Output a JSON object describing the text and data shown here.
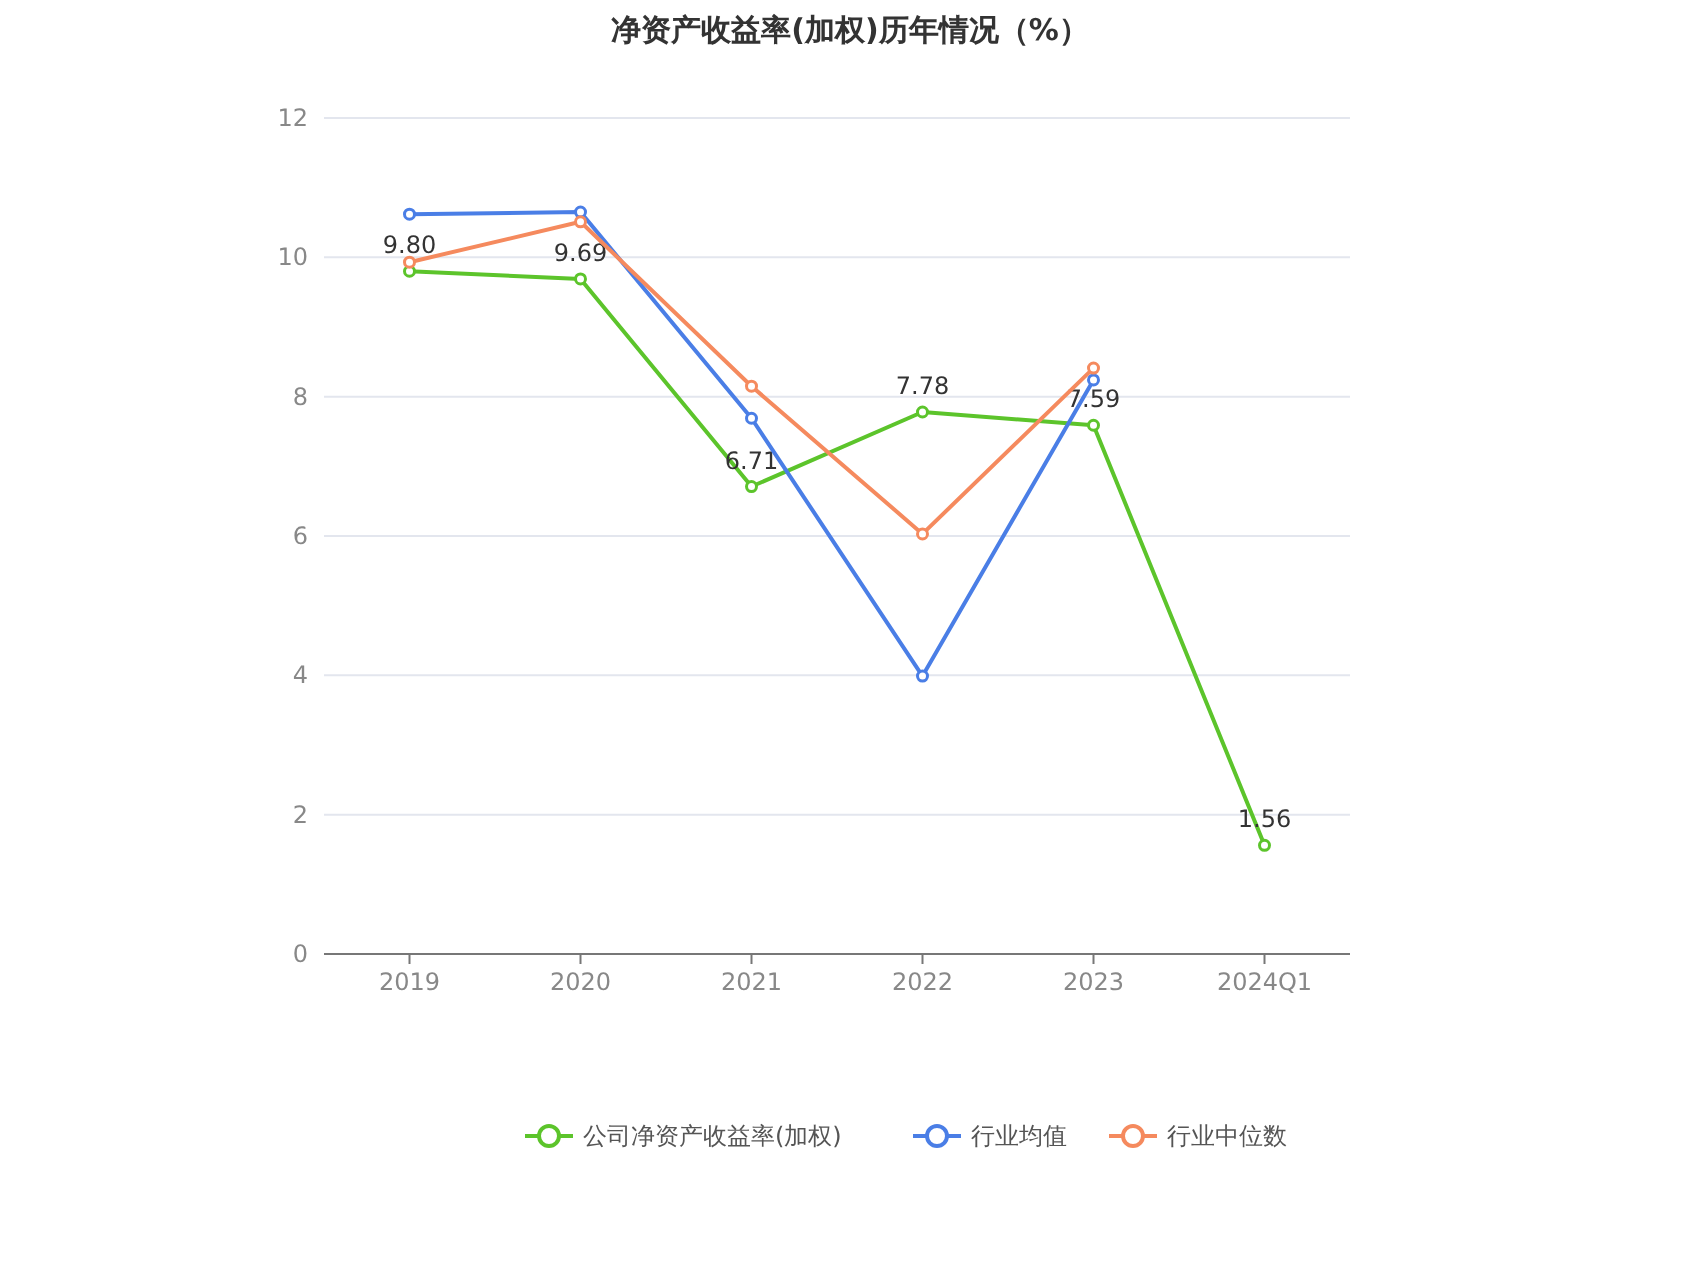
{
  "chart_data": {
    "type": "line",
    "title": "净资产收益率(加权)历年情况（%）",
    "categories": [
      "2019",
      "2020",
      "2021",
      "2022",
      "2023",
      "2024Q1"
    ],
    "series": [
      {
        "name": "公司净资产收益率(加权)",
        "color": "#5cc42b",
        "values": [
          9.8,
          9.69,
          6.71,
          7.78,
          7.59,
          1.56
        ],
        "value_labels": [
          "9.80",
          "9.69",
          "6.71",
          "7.78",
          "7.59",
          "1.56"
        ]
      },
      {
        "name": "行业均值",
        "color": "#4a7ee6",
        "values": [
          10.62,
          10.65,
          7.69,
          3.99,
          8.24,
          null
        ]
      },
      {
        "name": "行业中位数",
        "color": "#f58a5e",
        "values": [
          9.93,
          10.51,
          8.15,
          6.03,
          8.41,
          null
        ]
      }
    ],
    "ylim": [
      0,
      12
    ],
    "yticks": [
      0,
      2,
      4,
      6,
      8,
      10,
      12
    ],
    "grid": "y",
    "legend": "bottom",
    "marker": "circle",
    "line_style": "solid"
  }
}
